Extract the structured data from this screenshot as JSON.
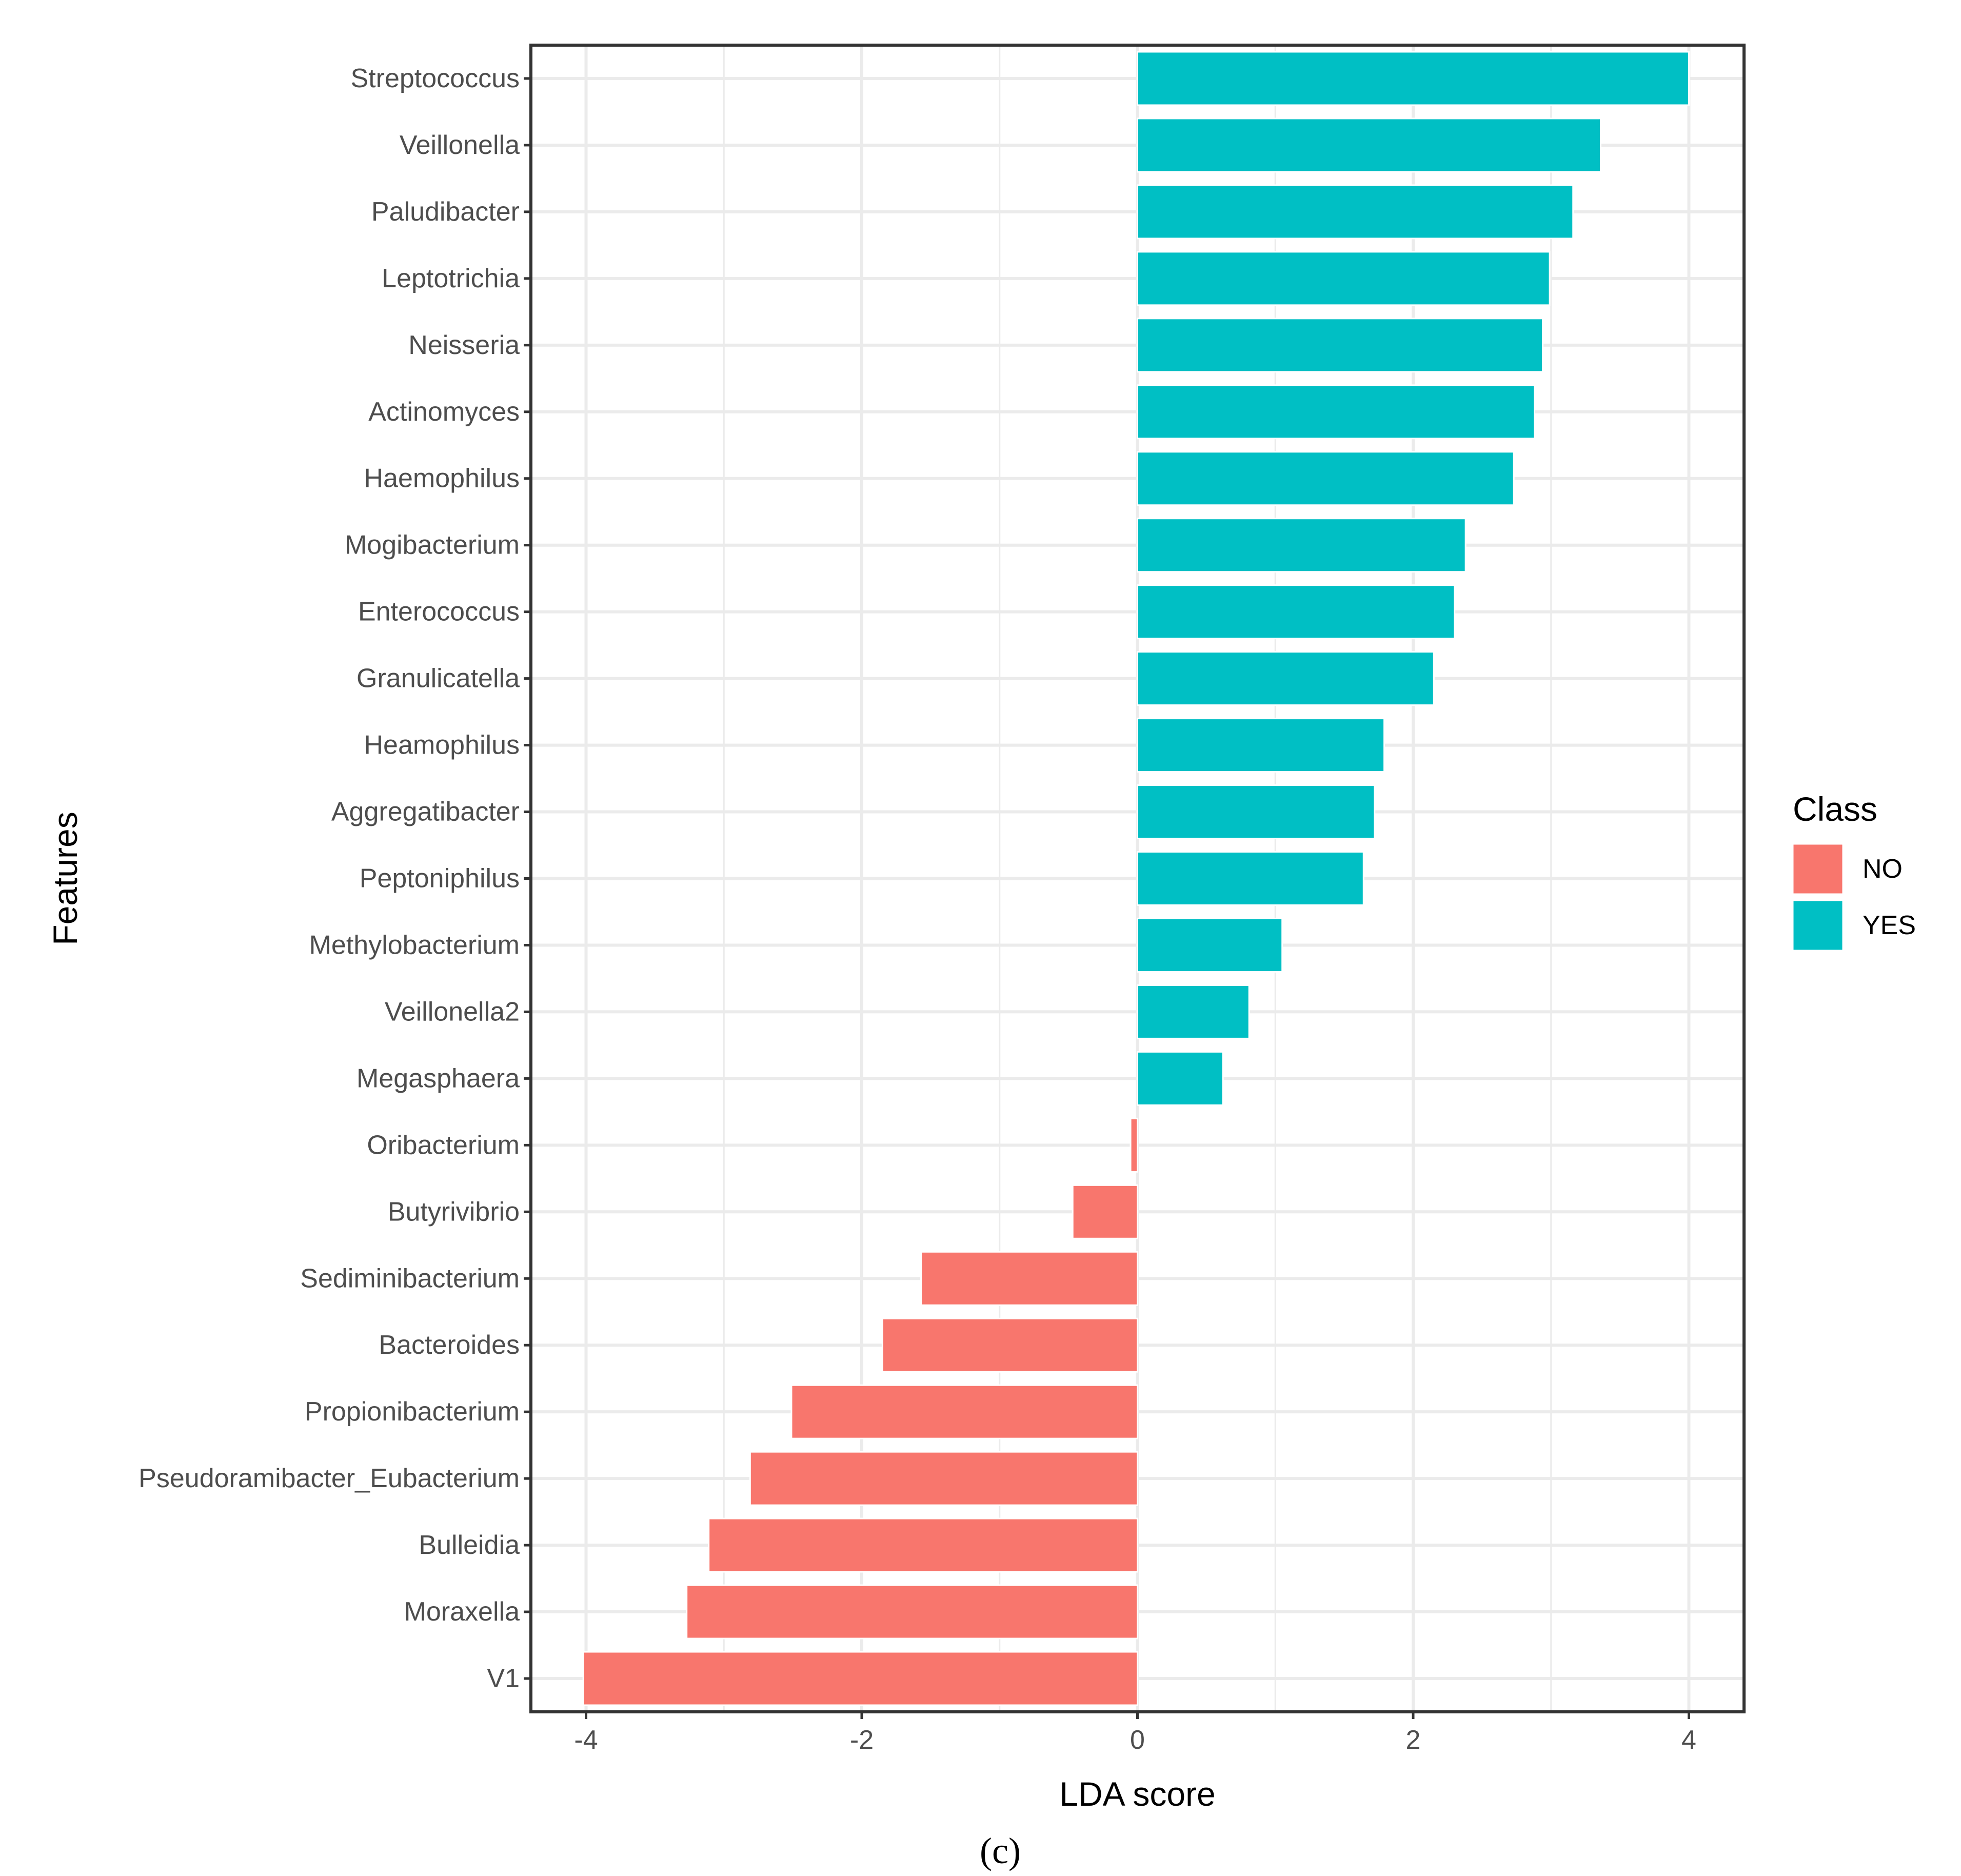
{
  "chart_data": {
    "type": "bar",
    "orientation": "horizontal",
    "xlabel": "LDA score",
    "ylabel": "Features",
    "xlim": [
      -4.4,
      4.4
    ],
    "xticks": [
      -4,
      -2,
      0,
      2,
      4
    ],
    "xtick_labels": [
      "-4",
      "-2",
      "0",
      "2",
      "4"
    ],
    "grid": true,
    "legend": {
      "title": "Class",
      "placement": "right",
      "entries": [
        {
          "label": "NO",
          "color": "#F8766D"
        },
        {
          "label": "YES",
          "color": "#00BFC4"
        }
      ]
    },
    "categories": [
      "Streptococcus",
      "Veillonella",
      "Paludibacter",
      "Leptotrichia",
      "Neisseria",
      "Actinomyces",
      "Haemophilus",
      "Mogibacterium",
      "Enterococcus",
      "Granulicatella",
      "Heamophilus",
      "Aggregatibacter",
      "Peptoniphilus",
      "Methylobacterium",
      "Veillonella2",
      "Megasphaera",
      "Oribacterium",
      "Butyrivibrio",
      "Sediminibacterium",
      "Bacteroides",
      "Propionibacterium",
      "Pseudoramibacter_Eubacterium",
      "Bulleidia",
      "Moraxella",
      "V1"
    ],
    "values": [
      4.0,
      3.36,
      3.16,
      2.99,
      2.94,
      2.88,
      2.73,
      2.38,
      2.3,
      2.15,
      1.79,
      1.72,
      1.64,
      1.05,
      0.81,
      0.62,
      -0.05,
      -0.47,
      -1.57,
      -1.85,
      -2.51,
      -2.81,
      -3.11,
      -3.27,
      -4.02
    ],
    "classes": [
      "YES",
      "YES",
      "YES",
      "YES",
      "YES",
      "YES",
      "YES",
      "YES",
      "YES",
      "YES",
      "YES",
      "YES",
      "YES",
      "YES",
      "YES",
      "YES",
      "NO",
      "NO",
      "NO",
      "NO",
      "NO",
      "NO",
      "NO",
      "NO",
      "NO"
    ]
  },
  "colors": {
    "NO": "#F8766D",
    "YES": "#00BFC4",
    "grid": "#ebebeb",
    "panel_border": "#333333"
  },
  "caption": "(c)"
}
